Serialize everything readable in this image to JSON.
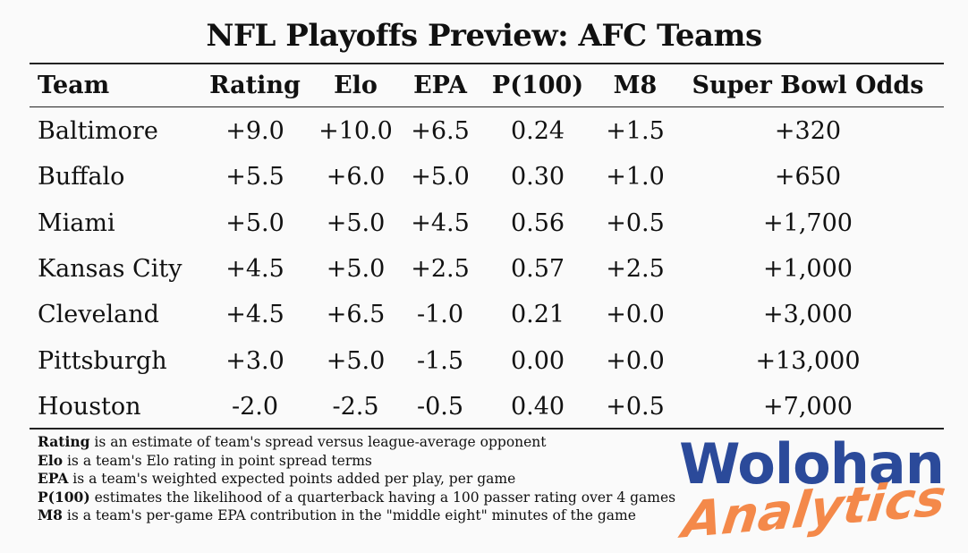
{
  "title": "NFL Playoffs Preview: AFC Teams",
  "chart_data": {
    "type": "table",
    "columns": [
      "Team",
      "Rating",
      "Elo",
      "EPA",
      "P(100)",
      "M8",
      "Super Bowl Odds"
    ],
    "rows": [
      [
        "Baltimore",
        "+9.0",
        "+10.0",
        "+6.5",
        "0.24",
        "+1.5",
        "+320"
      ],
      [
        "Buffalo",
        "+5.5",
        "+6.0",
        "+5.0",
        "0.30",
        "+1.0",
        "+650"
      ],
      [
        "Miami",
        "+5.0",
        "+5.0",
        "+4.5",
        "0.56",
        "+0.5",
        "+1,700"
      ],
      [
        "Kansas City",
        "+4.5",
        "+5.0",
        "+2.5",
        "0.57",
        "+2.5",
        "+1,000"
      ],
      [
        "Cleveland",
        "+4.5",
        "+6.5",
        "-1.0",
        "0.21",
        "+0.0",
        "+3,000"
      ],
      [
        "Pittsburgh",
        "+3.0",
        "+5.0",
        "-1.5",
        "0.00",
        "+0.0",
        "+13,000"
      ],
      [
        "Houston",
        "-2.0",
        "-2.5",
        "-0.5",
        "0.40",
        "+0.5",
        "+7,000"
      ]
    ]
  },
  "footnotes": [
    {
      "term": "Rating",
      "text": " is an estimate of team's spread versus league-average opponent"
    },
    {
      "term": "Elo",
      "text": " is a team's Elo rating in point spread terms"
    },
    {
      "term": "EPA",
      "text": " is a team's weighted expected points added per play, per game"
    },
    {
      "term": "P(100)",
      "text": " estimates the likelihood of a quarterback having a 100 passer rating over 4 games"
    },
    {
      "term": "M8",
      "text": " is a team's per-game EPA contribution in the \"middle eight\" minutes of the game"
    }
  ],
  "logo": {
    "line1": "Wolohan",
    "line2": "Analytics",
    "color1": "#2b4a9a",
    "color2": "#f4894a"
  }
}
